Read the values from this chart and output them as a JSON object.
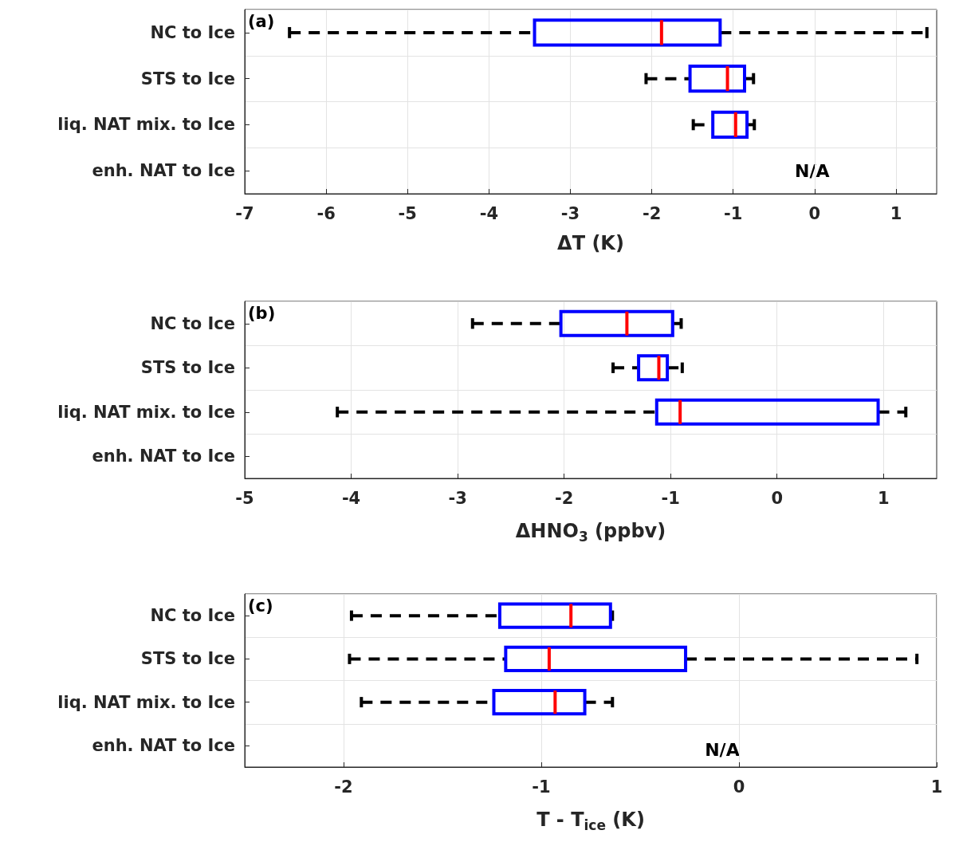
{
  "chart_data": [
    {
      "type": "box",
      "orientation": "horizontal",
      "categories": [
        "NC to Ice",
        "STS to Ice",
        "liq. NAT mix. to Ice",
        "enh. NAT to Ice"
      ],
      "xlabel": "ΔT (K)",
      "xlim": [
        -7,
        1.5
      ],
      "xticks": [
        -7,
        -6,
        -5,
        -4,
        -3,
        -2,
        -1,
        0,
        1
      ],
      "grid": true,
      "series": [
        {
          "color": "#0000ff",
          "boxes": [
            {
              "low": -6.45,
              "q1": -3.44,
              "median": -1.88,
              "q3": -1.16,
              "high": 1.38
            },
            {
              "low": -2.07,
              "q1": -1.53,
              "median": -1.07,
              "q3": -0.86,
              "high": -0.75
            },
            {
              "low": -1.49,
              "q1": -1.25,
              "median": -0.97,
              "q3": -0.83,
              "high": -0.74
            },
            null
          ]
        }
      ],
      "annotations": [
        "(a)",
        "N/A"
      ]
    },
    {
      "type": "box",
      "orientation": "horizontal",
      "categories": [
        "NC to Ice",
        "STS to Ice",
        "liq. NAT mix. to Ice",
        "enh. NAT to Ice"
      ],
      "xlabel": "ΔHNO$_{3}$ (ppbv)",
      "xlim": [
        -5,
        1.5
      ],
      "xticks": [
        -5,
        -4,
        -3,
        -2,
        -1,
        0,
        1
      ],
      "grid": true,
      "series": [
        {
          "color": "#0000ff",
          "boxes": [
            {
              "low": -2.86,
              "q1": -2.03,
              "median": -1.41,
              "q3": -0.98,
              "high": -0.9
            },
            {
              "low": -1.54,
              "q1": -1.3,
              "median": -1.11,
              "q3": -1.03,
              "high": -0.89
            },
            {
              "low": -4.13,
              "q1": -1.13,
              "median": -0.91,
              "q3": 0.95,
              "high": 1.21
            },
            null
          ]
        }
      ],
      "annotations": [
        "(b)"
      ]
    },
    {
      "type": "box",
      "orientation": "horizontal",
      "categories": [
        "NC to Ice",
        "STS to Ice",
        "liq. NAT mix. to Ice",
        "enh. NAT to Ice"
      ],
      "xlabel": "T - T$_{ice}$ (K)",
      "xlim": [
        -2.5,
        1
      ],
      "xticks": [
        -2,
        -1,
        0,
        1
      ],
      "grid": true,
      "series": [
        {
          "color": "#0000ff",
          "boxes": [
            {
              "low": -1.96,
              "q1": -1.21,
              "median": -0.85,
              "q3": -0.65,
              "high": -0.64
            },
            {
              "low": -1.97,
              "q1": -1.18,
              "median": -0.96,
              "q3": -0.27,
              "high": 0.9
            },
            {
              "low": -1.91,
              "q1": -1.24,
              "median": -0.93,
              "q3": -0.78,
              "high": -0.64
            },
            null
          ]
        }
      ],
      "annotations": [
        "(c)",
        "N/A"
      ]
    }
  ]
}
